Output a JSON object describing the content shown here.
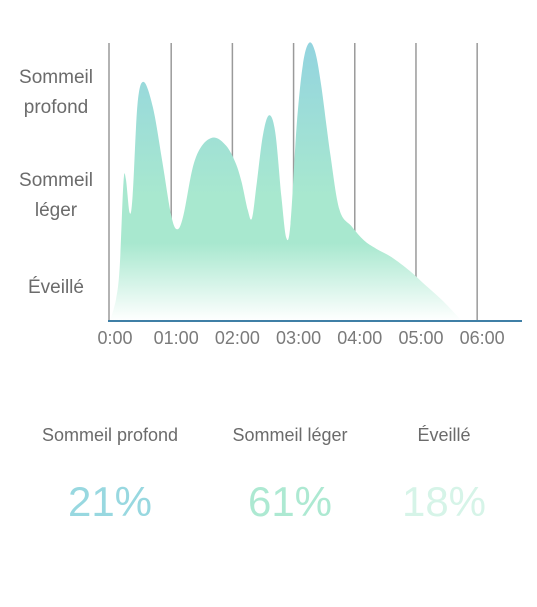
{
  "chart_data": {
    "type": "area",
    "y_categories": [
      "Sommeil profond",
      "Sommeil léger",
      "Éveillé"
    ],
    "y_category_lines": {
      "Sommeil profond": [
        "Sommeil",
        "profond"
      ],
      "Sommeil léger": [
        "Sommeil",
        "léger"
      ],
      "Éveillé": [
        "Éveillé"
      ]
    },
    "x_ticks": [
      "0:00",
      "01:00",
      "02:00",
      "03:00",
      "04:00",
      "05:00",
      "06:00"
    ],
    "xlim_hours": [
      0,
      6.7
    ],
    "ylim": [
      0,
      1
    ],
    "grid": "vertical",
    "series": [
      {
        "points": [
          [
            0.0,
            0.0
          ],
          [
            0.1,
            0.08
          ],
          [
            0.16,
            0.2
          ],
          [
            0.22,
            0.5
          ],
          [
            0.26,
            0.51
          ],
          [
            0.32,
            0.39
          ],
          [
            0.37,
            0.45
          ],
          [
            0.45,
            0.78
          ],
          [
            0.55,
            0.86
          ],
          [
            0.7,
            0.77
          ],
          [
            0.85,
            0.58
          ],
          [
            1.0,
            0.38
          ],
          [
            1.1,
            0.33
          ],
          [
            1.2,
            0.38
          ],
          [
            1.35,
            0.55
          ],
          [
            1.5,
            0.63
          ],
          [
            1.7,
            0.66
          ],
          [
            1.9,
            0.63
          ],
          [
            2.05,
            0.57
          ],
          [
            2.15,
            0.5
          ],
          [
            2.25,
            0.4
          ],
          [
            2.32,
            0.37
          ],
          [
            2.4,
            0.5
          ],
          [
            2.5,
            0.67
          ],
          [
            2.6,
            0.74
          ],
          [
            2.7,
            0.68
          ],
          [
            2.8,
            0.45
          ],
          [
            2.88,
            0.3
          ],
          [
            2.95,
            0.35
          ],
          [
            3.05,
            0.7
          ],
          [
            3.15,
            0.92
          ],
          [
            3.25,
            1.0
          ],
          [
            3.35,
            0.97
          ],
          [
            3.45,
            0.85
          ],
          [
            3.6,
            0.6
          ],
          [
            3.75,
            0.4
          ],
          [
            3.95,
            0.34
          ],
          [
            4.15,
            0.29
          ],
          [
            4.35,
            0.26
          ],
          [
            4.6,
            0.23
          ],
          [
            4.9,
            0.18
          ],
          [
            5.15,
            0.13
          ],
          [
            5.45,
            0.07
          ],
          [
            5.75,
            0.0
          ]
        ]
      }
    ],
    "colors": {
      "deep": "#93d4df",
      "light": "#a8e8cf",
      "fade": "#ffffff",
      "axis": "#3f7fa6",
      "grid": "#9a9a9a"
    }
  },
  "stats": [
    {
      "label": "Sommeil profond",
      "value": "21%",
      "color": "#98d8e0"
    },
    {
      "label": "Sommeil léger",
      "value": "61%",
      "color": "#ade9d2"
    },
    {
      "label": "Éveillé",
      "value": "18%",
      "color": "#d6f4e8"
    }
  ]
}
